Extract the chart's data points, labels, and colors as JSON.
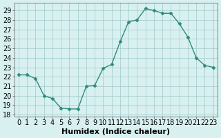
{
  "x": [
    0,
    1,
    2,
    3,
    4,
    5,
    6,
    7,
    8,
    9,
    10,
    11,
    12,
    13,
    14,
    15,
    16,
    17,
    18,
    19,
    20,
    21,
    22,
    23
  ],
  "y": [
    22.2,
    22.2,
    21.8,
    20.0,
    19.7,
    18.7,
    18.6,
    18.6,
    21.0,
    21.1,
    22.9,
    23.3,
    25.7,
    27.8,
    28.0,
    29.2,
    29.0,
    28.7,
    28.7,
    27.6,
    26.2,
    24.0,
    23.2,
    23.0
  ],
  "line_color": "#2e8b7a",
  "marker": "D",
  "marker_size": 2.5,
  "bg_color": "#d8f0f0",
  "grid_color": "#a0c8c8",
  "xlabel": "Humidex (Indice chaleur)",
  "ylabel_ticks": [
    18,
    19,
    20,
    21,
    22,
    23,
    24,
    25,
    26,
    27,
    28,
    29
  ],
  "xlim": [
    -0.5,
    23.5
  ],
  "ylim": [
    17.8,
    29.8
  ],
  "xlabel_fontsize": 8,
  "tick_fontsize": 7
}
